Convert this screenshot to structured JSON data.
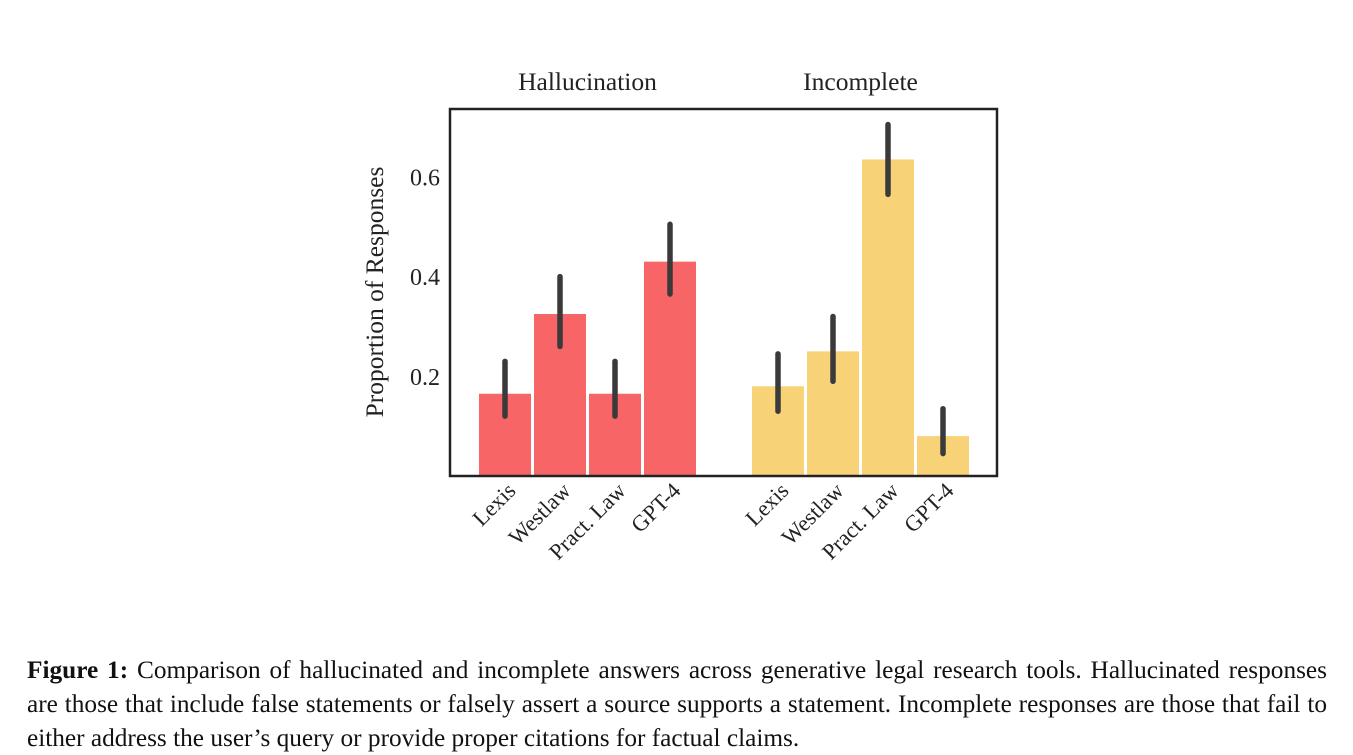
{
  "chart_data": {
    "type": "bar",
    "ylabel": "Proportion of Responses",
    "xlabel": "",
    "ylim": [
      0,
      0.72
    ],
    "yticks": [
      0.2,
      0.4,
      0.6
    ],
    "grid": false,
    "legend": "none",
    "groups": [
      {
        "name": "Hallucination",
        "color": "#f76566",
        "categories": [
          "Lexis",
          "Westlaw",
          "Pract. Law",
          "GPT-4"
        ],
        "values": [
          0.165,
          0.325,
          0.165,
          0.43
        ],
        "ci_low": [
          0.12,
          0.26,
          0.12,
          0.365
        ],
        "ci_high": [
          0.23,
          0.4,
          0.23,
          0.505
        ]
      },
      {
        "name": "Incomplete",
        "color": "#f8d277",
        "categories": [
          "Lexis",
          "Westlaw",
          "Pract. Law",
          "GPT-4"
        ],
        "values": [
          0.18,
          0.25,
          0.635,
          0.08
        ],
        "ci_low": [
          0.13,
          0.19,
          0.565,
          0.045
        ],
        "ci_high": [
          0.245,
          0.32,
          0.705,
          0.135
        ]
      }
    ]
  },
  "caption": {
    "label": "Figure 1:",
    "text": "Comparison of hallucinated and incomplete answers across generative legal research tools. Hallucinated responses are those that include false statements or falsely assert a source supports a statement. Incomplete responses are those that fail to either address the user’s query or provide proper citations for factual claims."
  }
}
